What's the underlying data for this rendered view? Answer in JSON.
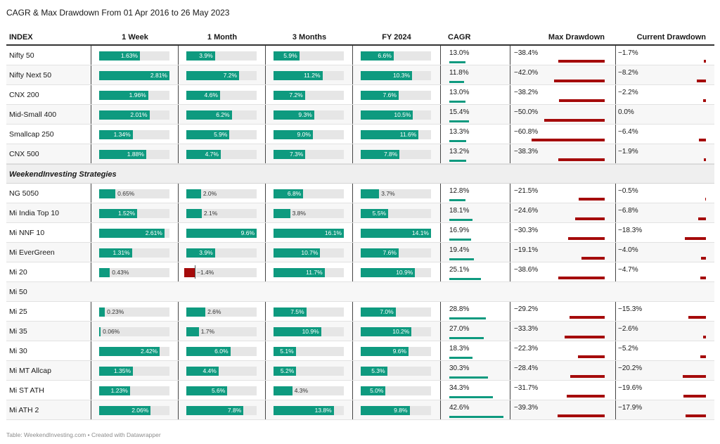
{
  "title": "CAGR & Max Drawdown From 01 Apr 2016 to 26 May 2023",
  "footer": "Table: WeekendInvesting.com • Created with Datawrapper",
  "colors": {
    "positive": "#0e9a7f",
    "negative": "#a50b0b",
    "track": "#e6e6e6"
  },
  "headers": [
    "INDEX",
    "1 Week",
    "1 Month",
    "3 Months",
    "FY 2024",
    "CAGR",
    "Max Drawdown",
    "Current Drawdown"
  ],
  "section_label": "WeekendInvesting Strategies",
  "chart_data": {
    "type": "table",
    "columns": [
      "INDEX",
      "1 Week",
      "1 Month",
      "3 Months",
      "FY 2024",
      "CAGR",
      "Max Drawdown",
      "Current Drawdown"
    ],
    "groups": [
      {
        "label": "",
        "rows": [
          {
            "name": "Nifty 50",
            "w1": 1.63,
            "m1": 3.9,
            "m3": 5.9,
            "fy": 6.6,
            "cagr": 13.0,
            "mdd": -38.4,
            "cdd": -1.7
          },
          {
            "name": "Nifty Next 50",
            "w1": 2.81,
            "m1": 7.2,
            "m3": 11.2,
            "fy": 10.3,
            "cagr": 11.8,
            "mdd": -42.0,
            "cdd": -8.2
          },
          {
            "name": "CNX 200",
            "w1": 1.96,
            "m1": 4.6,
            "m3": 7.2,
            "fy": 7.6,
            "cagr": 13.0,
            "mdd": -38.2,
            "cdd": -2.2
          },
          {
            "name": "Mid-Small 400",
            "w1": 2.01,
            "m1": 6.2,
            "m3": 9.3,
            "fy": 10.5,
            "cagr": 15.4,
            "mdd": -50.0,
            "cdd": 0.0
          },
          {
            "name": "Smallcap 250",
            "w1": 1.34,
            "m1": 5.9,
            "m3": 9.0,
            "fy": 11.6,
            "cagr": 13.3,
            "mdd": -60.8,
            "cdd": -6.4
          },
          {
            "name": "CNX 500",
            "w1": 1.88,
            "m1": 4.7,
            "m3": 7.3,
            "fy": 7.8,
            "cagr": 13.2,
            "mdd": -38.3,
            "cdd": -1.9
          }
        ]
      },
      {
        "label": "WeekendInvesting Strategies",
        "rows": [
          {
            "name": "NG 5050",
            "w1": 0.65,
            "m1": 2.0,
            "m3": 6.8,
            "fy": 3.7,
            "cagr": 12.8,
            "mdd": -21.5,
            "cdd": -0.5
          },
          {
            "name": "Mi India Top 10",
            "w1": 1.52,
            "m1": 2.1,
            "m3": 3.8,
            "fy": 5.5,
            "cagr": 18.1,
            "mdd": -24.6,
            "cdd": -6.8
          },
          {
            "name": "Mi NNF 10",
            "w1": 2.61,
            "m1": 9.6,
            "m3": 16.1,
            "fy": 14.1,
            "cagr": 16.9,
            "mdd": -30.3,
            "cdd": -18.3
          },
          {
            "name": "Mi EverGreen",
            "w1": 1.31,
            "m1": 3.9,
            "m3": 10.7,
            "fy": 7.6,
            "cagr": 19.4,
            "mdd": -19.1,
            "cdd": -4.0
          },
          {
            "name": "Mi 20",
            "w1": 0.43,
            "m1": -1.4,
            "m3": 11.7,
            "fy": 10.9,
            "cagr": 25.1,
            "mdd": -38.6,
            "cdd": -4.7
          },
          {
            "name": "Mi 50",
            "w1": null,
            "m1": null,
            "m3": null,
            "fy": null,
            "cagr": null,
            "mdd": null,
            "cdd": null
          },
          {
            "name": "Mi 25",
            "w1": 0.23,
            "m1": 2.6,
            "m3": 7.5,
            "fy": 7.0,
            "cagr": 28.8,
            "mdd": -29.2,
            "cdd": -15.3
          },
          {
            "name": "Mi 35",
            "w1": 0.06,
            "m1": 1.7,
            "m3": 10.9,
            "fy": 10.2,
            "cagr": 27.0,
            "mdd": -33.3,
            "cdd": -2.6
          },
          {
            "name": "Mi 30",
            "w1": 2.42,
            "m1": 6.0,
            "m3": 5.1,
            "fy": 9.6,
            "cagr": 18.3,
            "mdd": -22.3,
            "cdd": -5.2
          },
          {
            "name": "Mi MT Allcap",
            "w1": 1.35,
            "m1": 4.4,
            "m3": 5.2,
            "fy": 5.3,
            "cagr": 30.3,
            "mdd": -28.4,
            "cdd": -20.2
          },
          {
            "name": "Mi ST ATH",
            "w1": 1.23,
            "m1": 5.6,
            "m3": 4.3,
            "fy": 5.0,
            "cagr": 34.3,
            "mdd": -31.7,
            "cdd": -19.6
          },
          {
            "name": "Mi ATH 2",
            "w1": 2.06,
            "m1": 7.8,
            "m3": 13.8,
            "fy": 9.8,
            "cagr": 42.6,
            "mdd": -39.3,
            "cdd": -17.9
          }
        ]
      }
    ]
  }
}
